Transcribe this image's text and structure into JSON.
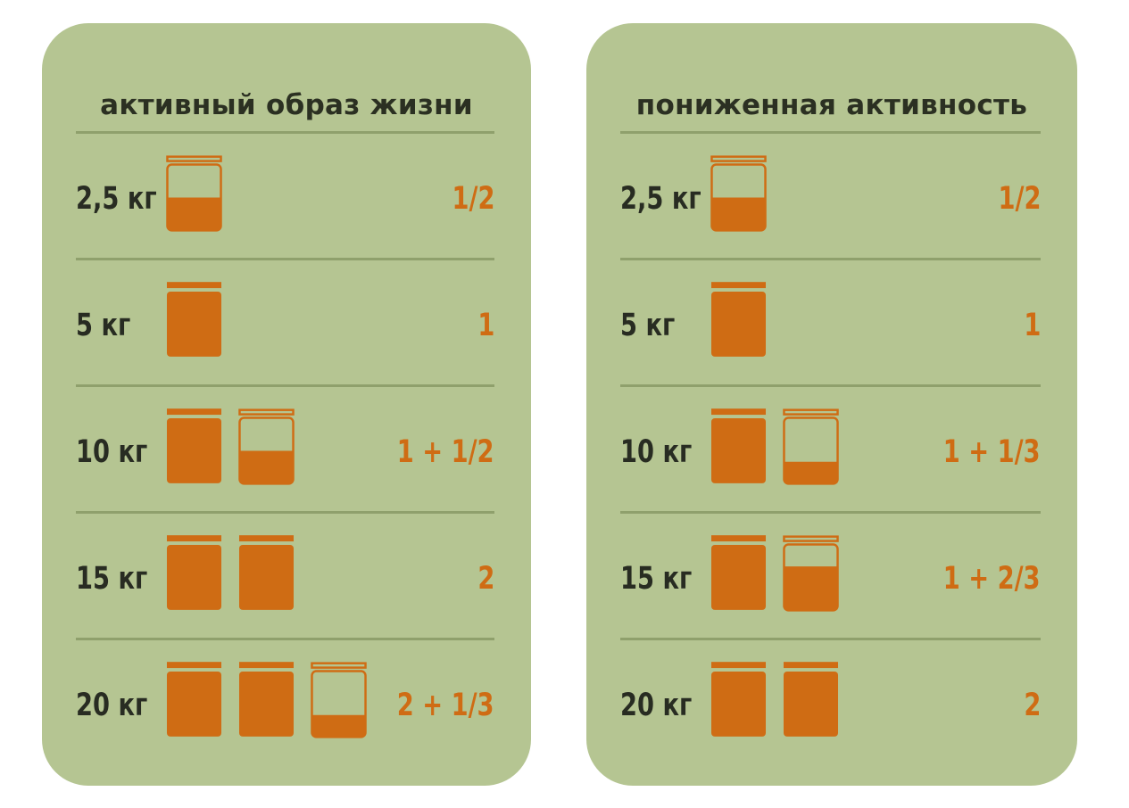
{
  "colors": {
    "card_background": "#b5c592",
    "divider": "#8fa06c",
    "text_dark": "#282c22",
    "accent_orange": "#cf6c14"
  },
  "cards": [
    {
      "title": "активный образ жизни",
      "rows": [
        {
          "weight": "2,5 кг",
          "jars": [
            0.5
          ],
          "portion": "1/2"
        },
        {
          "weight": "5 кг",
          "jars": [
            1
          ],
          "portion": "1"
        },
        {
          "weight": "10 кг",
          "jars": [
            1,
            0.5
          ],
          "portion": "1 + 1/2"
        },
        {
          "weight": "15 кг",
          "jars": [
            1,
            1
          ],
          "portion": "2"
        },
        {
          "weight": "20 кг",
          "jars": [
            1,
            1,
            0.333
          ],
          "portion": "2 + 1/3"
        }
      ]
    },
    {
      "title": "пониженная активность",
      "rows": [
        {
          "weight": "2,5 кг",
          "jars": [
            0.5
          ],
          "portion": "1/2"
        },
        {
          "weight": "5 кг",
          "jars": [
            1
          ],
          "portion": "1"
        },
        {
          "weight": "10 кг",
          "jars": [
            1,
            0.333
          ],
          "portion": "1 + 1/3"
        },
        {
          "weight": "15 кг",
          "jars": [
            1,
            0.667
          ],
          "portion": "1 + 2/3"
        },
        {
          "weight": "20 кг",
          "jars": [
            1,
            1
          ],
          "portion": "2"
        }
      ]
    }
  ]
}
